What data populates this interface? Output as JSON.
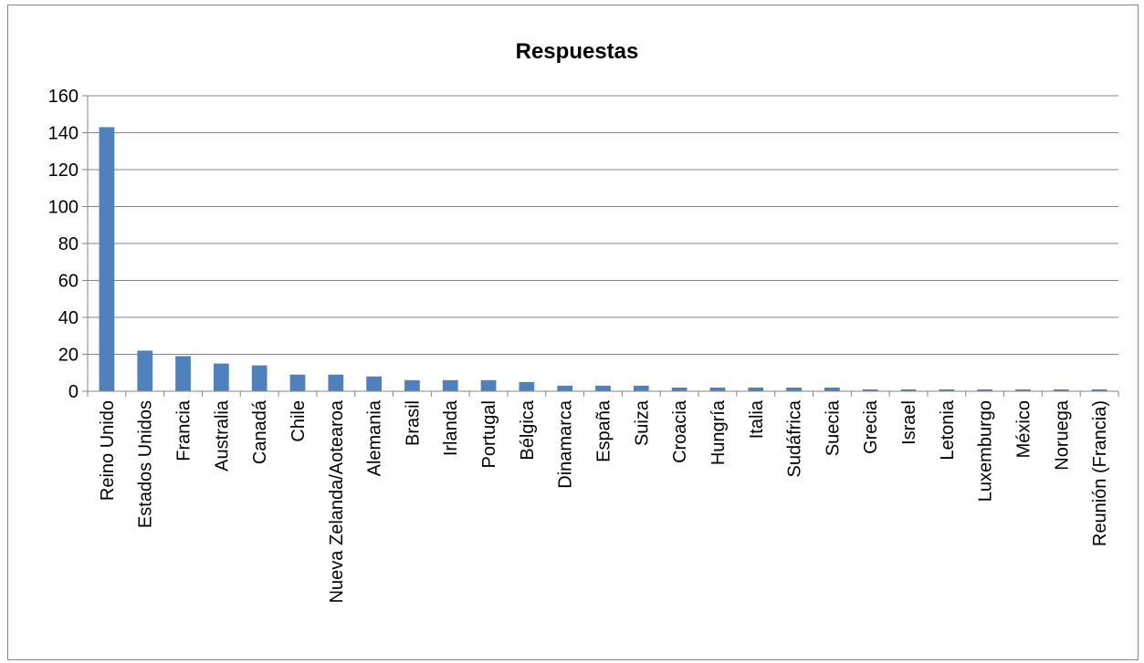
{
  "chart_data": {
    "type": "bar",
    "title": "Respuestas",
    "xlabel": "",
    "ylabel": "",
    "ylim": [
      0,
      160
    ],
    "y_ticks": [
      0,
      20,
      40,
      60,
      80,
      100,
      120,
      140,
      160
    ],
    "grid": true,
    "legend": "none",
    "bar_color": "#4F81BD",
    "categories": [
      "Reino Unido",
      "Estados Unidos",
      "Francia",
      "Australia",
      "Canadá",
      "Chile",
      "Nueva Zelanda/Aotearoa",
      "Alemania",
      "Brasil",
      "Irlanda",
      "Portugal",
      "Bélgica",
      "Dinamarca",
      "España",
      "Suiza",
      "Croacia",
      "Hungría",
      "Italia",
      "Sudáfrica",
      "Suecia",
      "Grecia",
      "Israel",
      "Letonia",
      "Luxemburgo",
      "México",
      "Noruega",
      "Reunión (Francia)"
    ],
    "values": [
      143,
      22,
      19,
      15,
      14,
      9,
      9,
      8,
      6,
      6,
      6,
      5,
      3,
      3,
      3,
      2,
      2,
      2,
      2,
      2,
      1,
      1,
      1,
      1,
      1,
      1,
      1
    ]
  }
}
